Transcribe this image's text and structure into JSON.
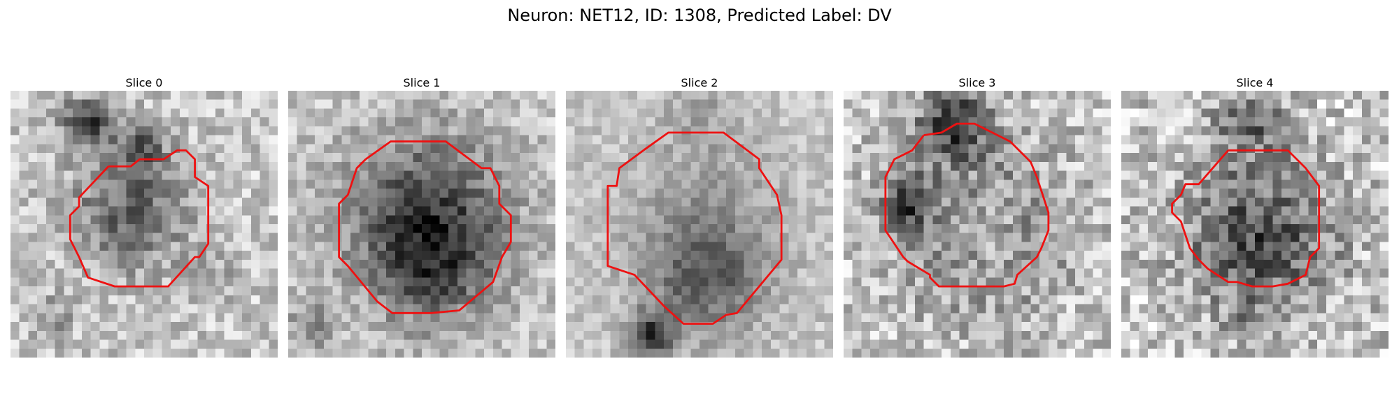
{
  "figure": {
    "title": "Neuron: NET12, ID: 1308, Predicted Label: DV"
  },
  "colors": {
    "contour": "#ee1111"
  },
  "slices": [
    {
      "title": "Slice 0",
      "description": "grayscale microscopy patch, faint dark cell body with dark blob at upper-left, red contour outline"
    },
    {
      "title": "Slice 1",
      "description": "grayscale microscopy patch, dark round cell body, red contour outline"
    },
    {
      "title": "Slice 2",
      "description": "grayscale microscopy patch, large round cell with lighter centre and dark process below, red contour outline"
    },
    {
      "title": "Slice 3",
      "description": "grayscale microscopy patch, ring-like cell with dark border at top-left, red contour outline"
    },
    {
      "title": "Slice 4",
      "description": "grayscale microscopy patch, dark textured cell body, red contour outline"
    }
  ]
}
